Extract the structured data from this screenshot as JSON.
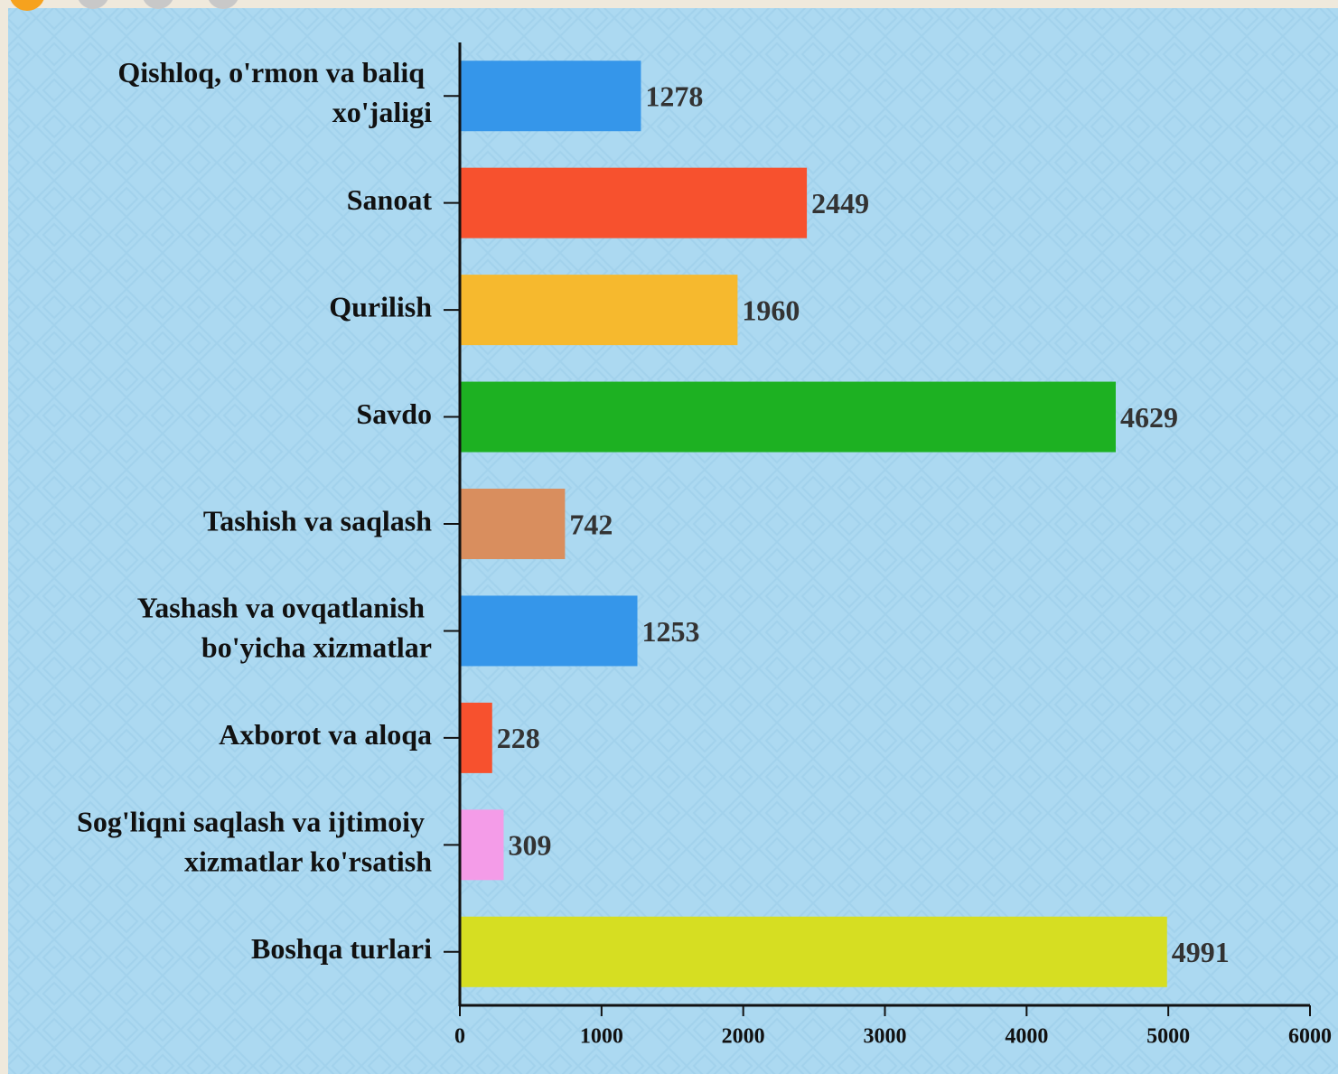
{
  "chart_data": {
    "type": "barh",
    "categories": [
      "Qishloq, o'rmon va baliq xo'jaligi",
      "Sanoat",
      "Qurilish",
      "Savdo",
      "Tashish va saqlash",
      "Yashash va ovqatlanish bo'yicha xizmatlar",
      "Axborot va aloqa",
      "Sog'liqni saqlash va ijtimoiy xizmatlar ko'rsatish",
      "Boshqa turlari"
    ],
    "values": [
      1278,
      2449,
      1960,
      4629,
      742,
      1253,
      228,
      309,
      4991
    ],
    "colors": [
      "#3596ea",
      "#f7512e",
      "#f6b92e",
      "#1db122",
      "#d98e5e",
      "#3596ea",
      "#f7512e",
      "#f49ce8",
      "#d6de22"
    ],
    "xlim": [
      0,
      6000
    ],
    "xticks": [
      0,
      1000,
      2000,
      3000,
      4000,
      5000,
      6000
    ]
  }
}
